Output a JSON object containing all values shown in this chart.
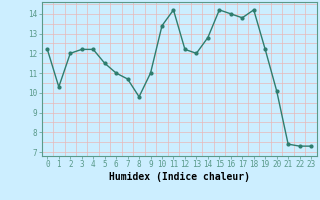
{
  "x": [
    0,
    1,
    2,
    3,
    4,
    5,
    6,
    7,
    8,
    9,
    10,
    11,
    12,
    13,
    14,
    15,
    16,
    17,
    18,
    19,
    20,
    21,
    22,
    23
  ],
  "y": [
    12.2,
    10.3,
    12.0,
    12.2,
    12.2,
    11.5,
    11.0,
    10.7,
    9.8,
    11.0,
    13.4,
    14.2,
    12.2,
    12.0,
    12.8,
    14.2,
    14.0,
    13.8,
    14.2,
    12.2,
    10.1,
    7.4,
    7.3,
    7.3
  ],
  "line_color": "#2e7d6e",
  "marker": "o",
  "markersize": 2.0,
  "linewidth": 1.0,
  "bg_color": "#cceeff",
  "grid_color": "#e8b8b8",
  "xlabel": "Humidex (Indice chaleur)",
  "xlabel_fontsize": 7,
  "xlim": [
    -0.5,
    23.5
  ],
  "ylim": [
    6.8,
    14.6
  ],
  "yticks": [
    7,
    8,
    9,
    10,
    11,
    12,
    13,
    14
  ],
  "xticks": [
    0,
    1,
    2,
    3,
    4,
    5,
    6,
    7,
    8,
    9,
    10,
    11,
    12,
    13,
    14,
    15,
    16,
    17,
    18,
    19,
    20,
    21,
    22,
    23
  ],
  "tick_fontsize": 5.5,
  "spine_color": "#5a9a8a"
}
